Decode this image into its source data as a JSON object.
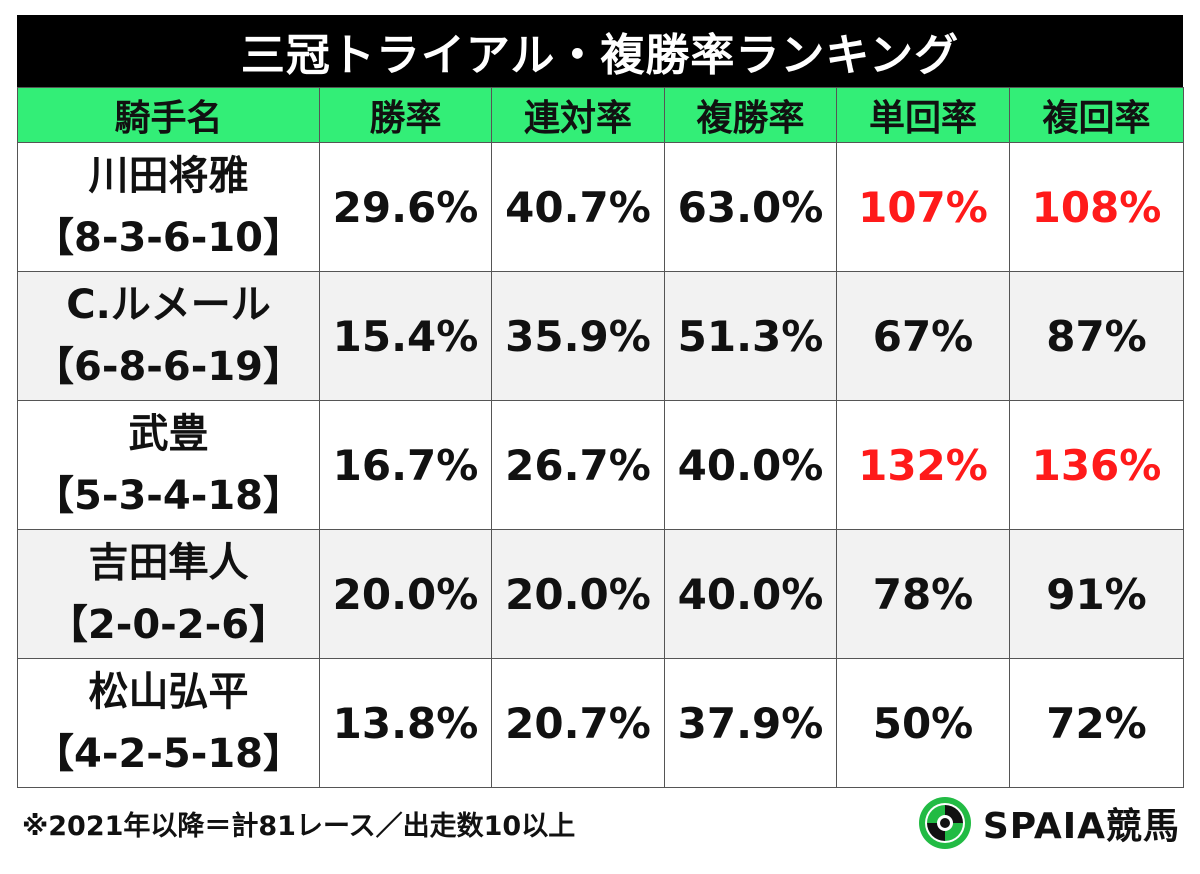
{
  "title": "三冠トライアル・複勝率ランキング",
  "accent_color": "#33ee77",
  "highlight_color": "#ff1a1a",
  "chart_data": {
    "type": "table",
    "columns": [
      "騎手名",
      "勝率",
      "連対率",
      "複勝率",
      "単回率",
      "複回率"
    ],
    "rows": [
      {
        "name": "川田将雅",
        "record": "【8-3-6-10】",
        "cells": [
          "29.6%",
          "40.7%",
          "63.0%",
          "107%",
          "108%"
        ],
        "highlight": [
          false,
          false,
          false,
          true,
          true
        ]
      },
      {
        "name": "C.ルメール",
        "record": "【6-8-6-19】",
        "cells": [
          "15.4%",
          "35.9%",
          "51.3%",
          "67%",
          "87%"
        ],
        "highlight": [
          false,
          false,
          false,
          false,
          false
        ]
      },
      {
        "name": "武豊",
        "record": "【5-3-4-18】",
        "cells": [
          "16.7%",
          "26.7%",
          "40.0%",
          "132%",
          "136%"
        ],
        "highlight": [
          false,
          false,
          false,
          true,
          true
        ]
      },
      {
        "name": "吉田隼人",
        "record": "【2-0-2-6】",
        "cells": [
          "20.0%",
          "20.0%",
          "40.0%",
          "78%",
          "91%"
        ],
        "highlight": [
          false,
          false,
          false,
          false,
          false
        ]
      },
      {
        "name": "松山弘平",
        "record": "【4-2-5-18】",
        "cells": [
          "13.8%",
          "20.7%",
          "37.9%",
          "50%",
          "72%"
        ],
        "highlight": [
          false,
          false,
          false,
          false,
          false
        ]
      }
    ]
  },
  "footnote": "※2021年以降＝計81レース／出走数10以上",
  "brand": {
    "icon": "spaia-logo-icon",
    "name": "SPAIA競馬"
  }
}
